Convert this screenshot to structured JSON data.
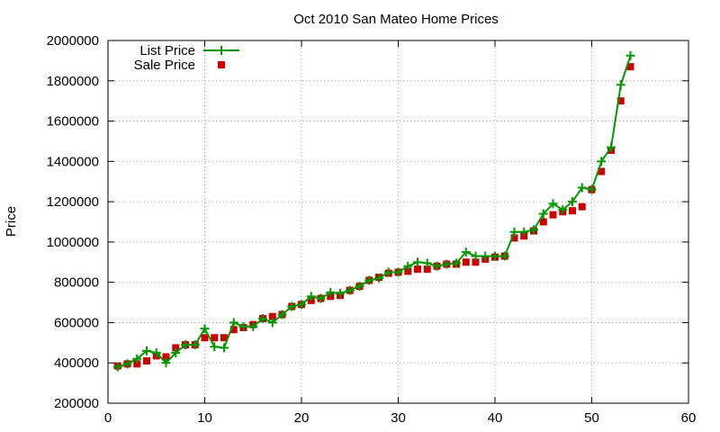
{
  "chart_data": {
    "type": "line",
    "title": "Oct 2010 San Mateo Home Prices",
    "xlabel": "",
    "ylabel": "Price",
    "xlim": [
      0,
      60
    ],
    "ylim": [
      200000,
      2000000
    ],
    "x_ticks": [
      0,
      10,
      20,
      30,
      40,
      50,
      60
    ],
    "y_ticks": [
      200000,
      400000,
      600000,
      800000,
      1000000,
      1200000,
      1400000,
      1600000,
      1800000,
      2000000
    ],
    "grid": true,
    "legend_position": "top-left",
    "series": [
      {
        "name": "List Price",
        "style": "line-with-plus",
        "color": "#009900",
        "x": [
          1,
          2,
          3,
          4,
          5,
          6,
          7,
          8,
          9,
          10,
          11,
          12,
          13,
          14,
          15,
          16,
          17,
          18,
          19,
          20,
          21,
          22,
          23,
          24,
          25,
          26,
          27,
          28,
          29,
          30,
          31,
          32,
          33,
          34,
          35,
          36,
          37,
          38,
          39,
          40,
          41,
          42,
          43,
          44,
          45,
          46,
          47,
          48,
          49,
          50,
          51,
          52,
          53,
          54
        ],
        "values": [
          380000,
          395000,
          420000,
          460000,
          450000,
          400000,
          450000,
          490000,
          490000,
          570000,
          480000,
          475000,
          600000,
          580000,
          580000,
          620000,
          600000,
          640000,
          680000,
          690000,
          730000,
          720000,
          750000,
          745000,
          760000,
          780000,
          810000,
          820000,
          850000,
          850000,
          880000,
          900000,
          895000,
          880000,
          890000,
          895000,
          950000,
          930000,
          930000,
          930000,
          930000,
          1050000,
          1050000,
          1060000,
          1140000,
          1190000,
          1160000,
          1200000,
          1270000,
          1260000,
          1400000,
          1470000,
          1780000,
          1925000
        ]
      },
      {
        "name": "Sale Price",
        "style": "square-markers",
        "color": "#cc0000",
        "x": [
          1,
          2,
          3,
          4,
          5,
          6,
          7,
          8,
          9,
          10,
          11,
          12,
          13,
          14,
          15,
          16,
          17,
          18,
          19,
          20,
          21,
          22,
          23,
          24,
          25,
          26,
          27,
          28,
          29,
          30,
          31,
          32,
          33,
          34,
          35,
          36,
          37,
          38,
          39,
          40,
          41,
          42,
          43,
          44,
          45,
          46,
          47,
          48,
          49,
          50,
          51,
          52,
          53,
          54
        ],
        "values": [
          385000,
          395000,
          395000,
          410000,
          435000,
          430000,
          475000,
          490000,
          490000,
          525000,
          525000,
          525000,
          565000,
          575000,
          590000,
          620000,
          630000,
          640000,
          680000,
          690000,
          710000,
          720000,
          730000,
          735000,
          760000,
          780000,
          810000,
          825000,
          845000,
          850000,
          855000,
          865000,
          865000,
          880000,
          890000,
          890000,
          900000,
          900000,
          915000,
          925000,
          930000,
          1020000,
          1030000,
          1055000,
          1100000,
          1135000,
          1150000,
          1155000,
          1175000,
          1260000,
          1350000,
          1455000,
          1700000,
          1870000
        ]
      }
    ]
  }
}
